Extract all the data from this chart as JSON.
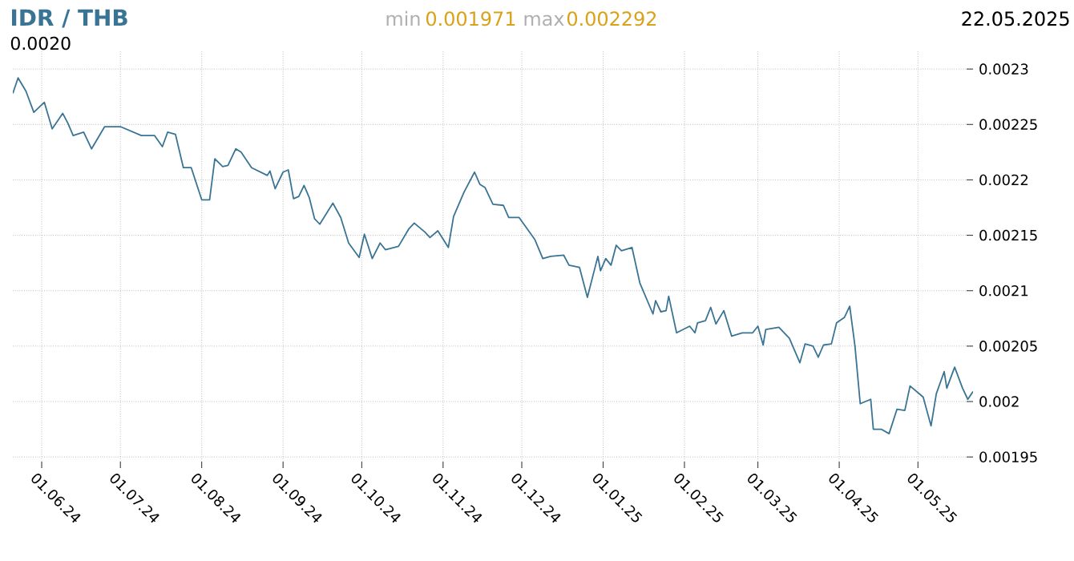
{
  "chart_data": {
    "type": "line",
    "title": "IDR / THB",
    "subtitle": "22.05.2025",
    "annotations": [
      "0.0020",
      "min",
      "0.001971",
      "max",
      "0.002292"
    ],
    "x": [
      "2024-05-21",
      "2024-05-23",
      "2024-05-26",
      "2024-05-29",
      "2024-06-02",
      "2024-06-04",
      "2024-06-05",
      "2024-06-09",
      "2024-06-11",
      "2024-06-13",
      "2024-06-17",
      "2024-06-20",
      "2024-06-25",
      "2024-07-01",
      "2024-07-09",
      "2024-07-14",
      "2024-07-17",
      "2024-07-19",
      "2024-07-22",
      "2024-07-25",
      "2024-07-28",
      "2024-08-01",
      "2024-08-04",
      "2024-08-06",
      "2024-08-09",
      "2024-08-11",
      "2024-08-14",
      "2024-08-16",
      "2024-08-20",
      "2024-08-26",
      "2024-08-27",
      "2024-08-29",
      "2024-09-01",
      "2024-09-03",
      "2024-09-05",
      "2024-09-07",
      "2024-09-09",
      "2024-09-11",
      "2024-09-13",
      "2024-09-15",
      "2024-09-20",
      "2024-09-23",
      "2024-09-26",
      "2024-09-30",
      "2024-10-02",
      "2024-10-05",
      "2024-10-08",
      "2024-10-10",
      "2024-10-15",
      "2024-10-19",
      "2024-10-21",
      "2024-10-25",
      "2024-10-27",
      "2024-10-30",
      "2024-11-03",
      "2024-11-05",
      "2024-11-09",
      "2024-11-13",
      "2024-11-15",
      "2024-11-17",
      "2024-11-20",
      "2024-11-24",
      "2024-11-26",
      "2024-11-30",
      "2024-12-06",
      "2024-12-09",
      "2024-12-12",
      "2024-12-17",
      "2024-12-19",
      "2024-12-23",
      "2024-12-26",
      "2024-12-30",
      "2024-12-31",
      "2025-01-02",
      "2025-01-04",
      "2025-01-06",
      "2025-01-08",
      "2025-01-12",
      "2025-01-15",
      "2025-01-20",
      "2025-01-21",
      "2025-01-23",
      "2025-01-25",
      "2025-01-26",
      "2025-01-29",
      "2025-02-03",
      "2025-02-05",
      "2025-02-06",
      "2025-02-09",
      "2025-02-11",
      "2025-02-13",
      "2025-02-16",
      "2025-02-19",
      "2025-02-23",
      "2025-02-27",
      "2025-03-01",
      "2025-03-03",
      "2025-03-04",
      "2025-03-09",
      "2025-03-13",
      "2025-03-17",
      "2025-03-19",
      "2025-03-22",
      "2025-03-24",
      "2025-03-26",
      "2025-03-29",
      "2025-03-31",
      "2025-04-03",
      "2025-04-05",
      "2025-04-07",
      "2025-04-09",
      "2025-04-13",
      "2025-04-14",
      "2025-04-17",
      "2025-04-20",
      "2025-04-23",
      "2025-04-26",
      "2025-04-28",
      "2025-05-03",
      "2025-05-06",
      "2025-05-08",
      "2025-05-11",
      "2025-05-12",
      "2025-05-15",
      "2025-05-18",
      "2025-05-20",
      "2025-05-22"
    ],
    "values": [
      0.002278,
      0.002292,
      0.00228,
      0.002261,
      0.00227,
      0.002254,
      0.002246,
      0.00226,
      0.002251,
      0.00224,
      0.002243,
      0.002228,
      0.002248,
      0.002248,
      0.00224,
      0.00224,
      0.00223,
      0.002243,
      0.002241,
      0.002211,
      0.002211,
      0.002182,
      0.002182,
      0.002219,
      0.002212,
      0.002213,
      0.002228,
      0.002225,
      0.002211,
      0.002204,
      0.002208,
      0.002192,
      0.002207,
      0.002209,
      0.002183,
      0.002185,
      0.002195,
      0.002184,
      0.002165,
      0.00216,
      0.002179,
      0.002166,
      0.002143,
      0.00213,
      0.002151,
      0.002129,
      0.002143,
      0.002137,
      0.00214,
      0.002156,
      0.002161,
      0.002153,
      0.002148,
      0.002154,
      0.002139,
      0.002167,
      0.002189,
      0.002207,
      0.002196,
      0.002193,
      0.002178,
      0.002177,
      0.002166,
      0.002166,
      0.002146,
      0.002129,
      0.002131,
      0.002132,
      0.002123,
      0.002121,
      0.002094,
      0.002131,
      0.002118,
      0.002129,
      0.002123,
      0.002141,
      0.002136,
      0.002139,
      0.002107,
      0.002079,
      0.002091,
      0.002081,
      0.002082,
      0.002095,
      0.002062,
      0.002068,
      0.002062,
      0.002071,
      0.002073,
      0.002085,
      0.00207,
      0.002082,
      0.002059,
      0.002062,
      0.002062,
      0.002068,
      0.002051,
      0.002065,
      0.002067,
      0.002057,
      0.002035,
      0.002052,
      0.00205,
      0.00204,
      0.002051,
      0.002052,
      0.002071,
      0.002076,
      0.002086,
      0.00205,
      0.001998,
      0.002002,
      0.001975,
      0.001975,
      0.001971,
      0.001993,
      0.001992,
      0.002014,
      0.002004,
      0.001978,
      0.002007,
      0.002027,
      0.002012,
      0.002031,
      0.002012,
      0.002002,
      0.002009
    ],
    "color": "#3a7494",
    "xlim": [
      "2024-05-21",
      "2025-05-22"
    ],
    "xticks": [
      {
        "value": "2024-06-01",
        "label": "01.06.24"
      },
      {
        "value": "2024-07-01",
        "label": "01.07.24"
      },
      {
        "value": "2024-08-01",
        "label": "01.08.24"
      },
      {
        "value": "2024-09-01",
        "label": "01.09.24"
      },
      {
        "value": "2024-10-01",
        "label": "01.10.24"
      },
      {
        "value": "2024-11-01",
        "label": "01.11.24"
      },
      {
        "value": "2024-12-01",
        "label": "01.12.24"
      },
      {
        "value": "2025-01-01",
        "label": "01.01.25"
      },
      {
        "value": "2025-02-01",
        "label": "01.02.25"
      },
      {
        "value": "2025-03-01",
        "label": "01.03.25"
      },
      {
        "value": "2025-04-01",
        "label": "01.04.25"
      },
      {
        "value": "2025-05-01",
        "label": "01.05.25"
      }
    ],
    "ylim": [
      0.00194,
      0.002316
    ],
    "yticks": [
      {
        "value": 0.00195,
        "label": "0.00195"
      },
      {
        "value": 0.002,
        "label": "0.002"
      },
      {
        "value": 0.00205,
        "label": "0.00205"
      },
      {
        "value": 0.0021,
        "label": "0.0021"
      },
      {
        "value": 0.00215,
        "label": "0.00215"
      },
      {
        "value": 0.0022,
        "label": "0.0022"
      },
      {
        "value": 0.00225,
        "label": "0.00225"
      },
      {
        "value": 0.0023,
        "label": "0.0023"
      }
    ],
    "grid": true
  }
}
